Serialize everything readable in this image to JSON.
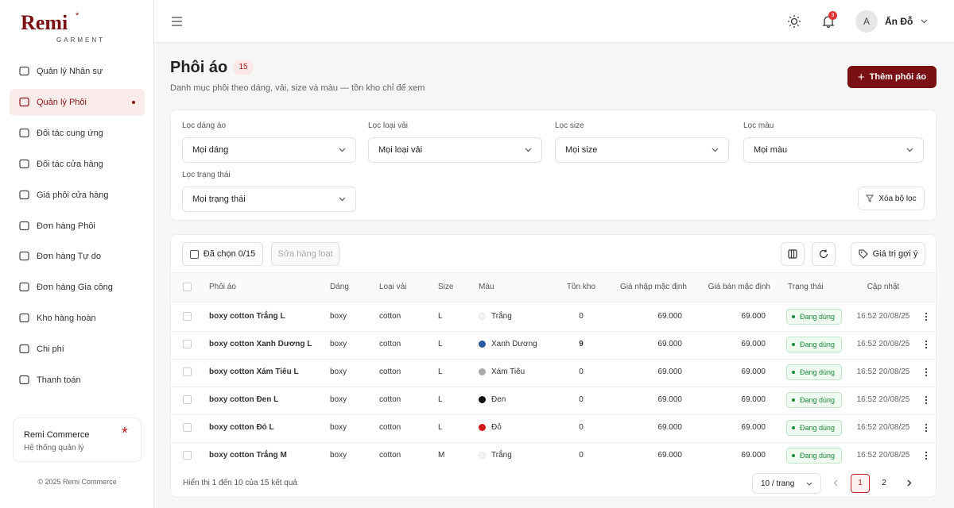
{
  "brand": {
    "name": "Remi",
    "mark": "*",
    "sub": "GARMENT"
  },
  "sidebar": {
    "active": 1,
    "items": [
      "Quản lý Nhân sự",
      "Quản lý Phôi",
      "Đối tác cung ứng",
      "Đối tác cửa hàng",
      "Giá phôi cửa hàng",
      "Đơn hàng Phôi",
      "Đơn hàng Tự do",
      "Đơn hàng Gia công",
      "Kho hàng hoàn",
      "Chi phí",
      "Thanh toán"
    ],
    "card": {
      "title": "Remi Commerce",
      "mark": "*",
      "subtitle": "Hệ thống quản lý"
    },
    "copyright": "© 2025 Remi Commerce"
  },
  "topbar": {
    "notifications": "3",
    "avatar": "A",
    "user": "Ấn Đỗ"
  },
  "header": {
    "title": "Phôi áo",
    "count": "15",
    "subtitle": "Danh mục phôi theo dáng, vải, size và màu — tồn kho chỉ để xem",
    "add_button": "Thêm phôi áo"
  },
  "filters": {
    "items": [
      {
        "label": "Lọc dáng áo",
        "value": "Mọi dáng"
      },
      {
        "label": "Lọc loại vải",
        "value": "Mọi loại vải"
      },
      {
        "label": "Lọc size",
        "value": "Mọi size"
      },
      {
        "label": "Lọc màu",
        "value": "Mọi màu"
      },
      {
        "label": "Lọc trạng thái",
        "value": "Mọi trạng thái"
      }
    ],
    "clear": "Xóa bộ lọc"
  },
  "toolbar": {
    "selected": "Đã chọn 0/15",
    "bulk_edit": "Sửa hàng loạt",
    "suggest": "Giá trị gợi ý"
  },
  "table": {
    "headers": [
      "Phôi áo",
      "Dáng",
      "Loại vải",
      "Size",
      "Màu",
      "Tồn kho",
      "Giá nhập mặc định",
      "Giá bán mặc định",
      "Trạng thái",
      "Cập nhật"
    ],
    "rows": [
      {
        "name": "boxy cotton Trắng L",
        "shape": "boxy",
        "fabric": "cotton",
        "size": "L",
        "color": "Trắng",
        "swatch": "#f4f4f4",
        "stock": "0",
        "buy": "69.000",
        "sell": "69.000",
        "status": "Đang dùng",
        "updated": "16:52 20/08/25"
      },
      {
        "name": "boxy cotton Xanh Dương L",
        "shape": "boxy",
        "fabric": "cotton",
        "size": "L",
        "color": "Xanh Dương",
        "swatch": "#2c5aa0",
        "stock": "9",
        "buy": "69.000",
        "sell": "69.000",
        "status": "Đang dùng",
        "updated": "16:52 20/08/25"
      },
      {
        "name": "boxy cotton Xám Tiêu L",
        "shape": "boxy",
        "fabric": "cotton",
        "size": "L",
        "color": "Xám Tiêu",
        "swatch": "#aaaaaa",
        "stock": "0",
        "buy": "69.000",
        "sell": "69.000",
        "status": "Đang dùng",
        "updated": "16:52 20/08/25"
      },
      {
        "name": "boxy cotton Đen L",
        "shape": "boxy",
        "fabric": "cotton",
        "size": "L",
        "color": "Đen",
        "swatch": "#111111",
        "stock": "0",
        "buy": "69.000",
        "sell": "69.000",
        "status": "Đang dùng",
        "updated": "16:52 20/08/25"
      },
      {
        "name": "boxy cotton Đỏ L",
        "shape": "boxy",
        "fabric": "cotton",
        "size": "L",
        "color": "Đỏ",
        "swatch": "#d0191b",
        "stock": "0",
        "buy": "69.000",
        "sell": "69.000",
        "status": "Đang dùng",
        "updated": "16:52 20/08/25"
      },
      {
        "name": "boxy cotton Trắng M",
        "shape": "boxy",
        "fabric": "cotton",
        "size": "M",
        "color": "Trắng",
        "swatch": "#f4f4f4",
        "stock": "0",
        "buy": "69.000",
        "sell": "69.000",
        "status": "Đang dùng",
        "updated": "16:52 20/08/25"
      }
    ]
  },
  "pagination": {
    "summary": "Hiển thị 1 đến 10 của 15 kết quả",
    "page_size": "10 / trang",
    "pages": [
      "1",
      "2"
    ],
    "current": 0
  }
}
